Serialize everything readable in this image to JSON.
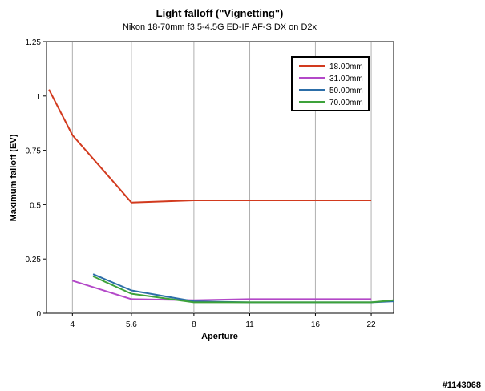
{
  "chart_data": {
    "type": "line",
    "title": "Light falloff (\"Vignetting\")",
    "subtitle": "Nikon 18-70mm f3.5-4.5G ED-IF AF-S DX on D2x",
    "xlabel": "Aperture",
    "ylabel": "Maximum falloff (EV)",
    "x_scale": "log",
    "xlim": [
      3.45,
      25.0
    ],
    "ylim": [
      0,
      1.25
    ],
    "xticks": [
      {
        "value": 4,
        "label": "4"
      },
      {
        "value": 5.6,
        "label": "5.6"
      },
      {
        "value": 8,
        "label": "8"
      },
      {
        "value": 11,
        "label": "11"
      },
      {
        "value": 16,
        "label": "16"
      },
      {
        "value": 22,
        "label": "22"
      }
    ],
    "yticks": [
      {
        "value": 0,
        "label": "0"
      },
      {
        "value": 0.25,
        "label": "0.25"
      },
      {
        "value": 0.5,
        "label": "0.5"
      },
      {
        "value": 0.75,
        "label": "0.75"
      },
      {
        "value": 1,
        "label": "1"
      },
      {
        "value": 1.25,
        "label": "1.25"
      }
    ],
    "grid": "vertical",
    "legend_position": "top-right",
    "series": [
      {
        "name": "18.00mm",
        "color": "#d23a1e",
        "points": [
          [
            3.5,
            1.03
          ],
          [
            4,
            0.82
          ],
          [
            5.6,
            0.51
          ],
          [
            8,
            0.52
          ],
          [
            11,
            0.52
          ],
          [
            16,
            0.52
          ],
          [
            22,
            0.52
          ]
        ]
      },
      {
        "name": "31.00mm",
        "color": "#b348c8",
        "points": [
          [
            4,
            0.15
          ],
          [
            5.6,
            0.065
          ],
          [
            8,
            0.06
          ],
          [
            11,
            0.065
          ],
          [
            16,
            0.065
          ],
          [
            22,
            0.065
          ]
        ]
      },
      {
        "name": "50.00mm",
        "color": "#2c6ea8",
        "points": [
          [
            4.5,
            0.18
          ],
          [
            5.6,
            0.105
          ],
          [
            8,
            0.055
          ],
          [
            11,
            0.05
          ],
          [
            16,
            0.05
          ],
          [
            22,
            0.05
          ],
          [
            25,
            0.055
          ]
        ]
      },
      {
        "name": "70.00mm",
        "color": "#3da23a",
        "points": [
          [
            4.5,
            0.17
          ],
          [
            5.6,
            0.09
          ],
          [
            8,
            0.05
          ],
          [
            11,
            0.05
          ],
          [
            16,
            0.05
          ],
          [
            22,
            0.05
          ],
          [
            25,
            0.06
          ]
        ]
      }
    ]
  },
  "watermark": "#1143068"
}
